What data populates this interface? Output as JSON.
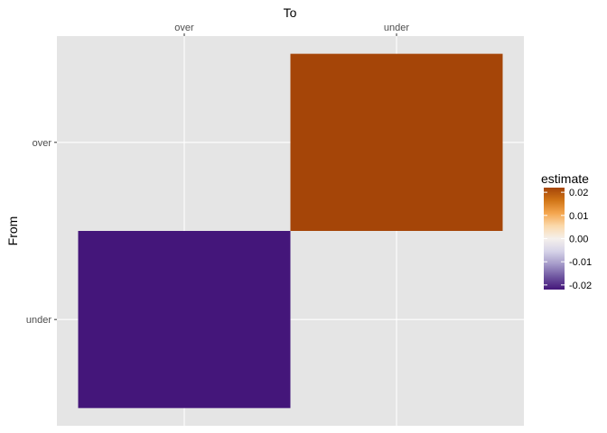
{
  "chart_data": {
    "type": "heatmap",
    "title": "",
    "xlabel": "To",
    "ylabel": "From",
    "x_axis_position": "top",
    "x_categories": [
      "over",
      "under"
    ],
    "y_categories": [
      "over",
      "under"
    ],
    "cells": [
      {
        "from": "over",
        "to": "under",
        "estimate": 0.022,
        "color": "#A54508"
      },
      {
        "from": "under",
        "to": "over",
        "estimate": -0.022,
        "color": "#44167A"
      }
    ],
    "missing_cells": [
      {
        "from": "over",
        "to": "over"
      },
      {
        "from": "under",
        "to": "under"
      }
    ],
    "panel_background": "#E5E5E5",
    "grid": true,
    "legend": {
      "title": "estimate",
      "position": "right",
      "ticks": [
        "0.02",
        "0.01",
        "0.00",
        "-0.01",
        "-0.02"
      ],
      "tick_values": [
        0.02,
        0.01,
        0.0,
        -0.01,
        -0.02
      ],
      "range": [
        -0.022,
        0.022
      ],
      "gradient_colors": [
        "#A54508",
        "#D17517",
        "#F4A64F",
        "#FBD9AB",
        "#F5F0EC",
        "#D6D3E8",
        "#A59BC9",
        "#6F56A0",
        "#44167A"
      ]
    }
  }
}
